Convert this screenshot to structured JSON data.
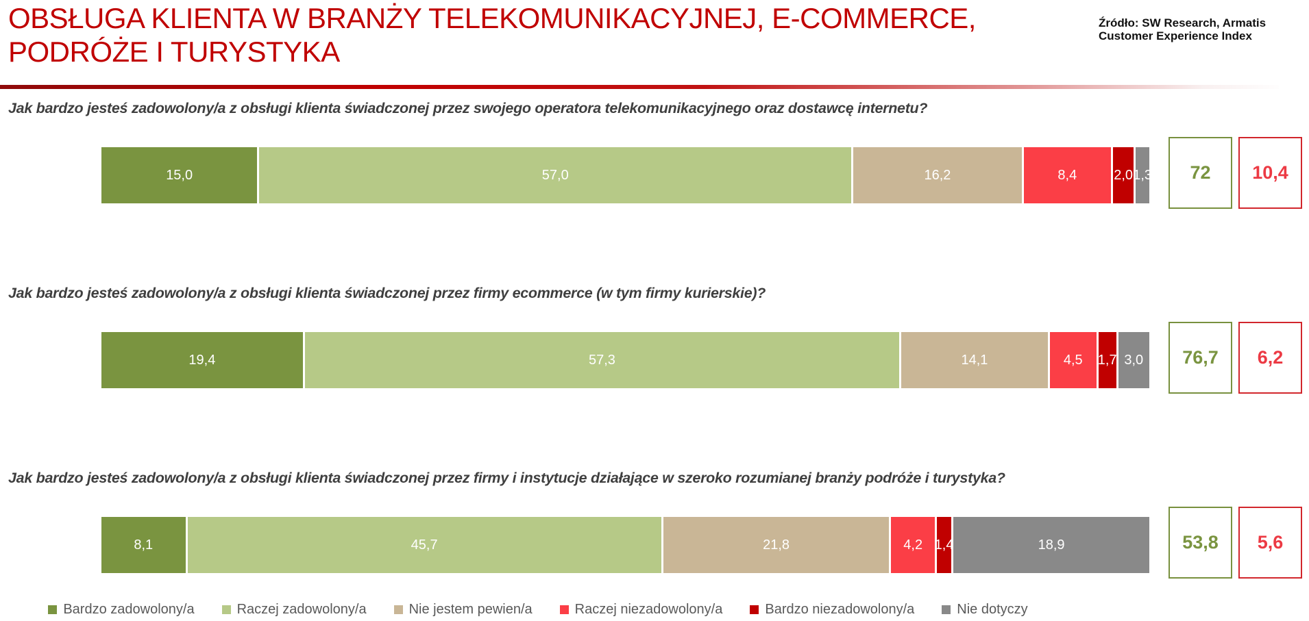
{
  "title_line1": "OBSŁUGA KLIENTA W BRANŻY TELEKOMUNIKACYJNEJ, E-COMMERCE,",
  "title_line2": "PODRÓŻE I TURYSTYKA",
  "source": {
    "line1": "Źródło: SW Research, Armatis",
    "line2": "Customer Experience Index"
  },
  "colors": {
    "title_red": "#C00000",
    "question_text": "#3F3F3F",
    "legend_text": "#595959",
    "positive_box_border": "#78903E",
    "positive_box_text": "#7A9440",
    "negative_box_border": "#D2262C",
    "negative_box_text": "#EC3A44"
  },
  "chart_data": {
    "type": "bar",
    "stacked": true,
    "orientation": "horizontal",
    "xlim": [
      0,
      100
    ],
    "grid": false,
    "legend_position": "bottom",
    "value_label_format": "comma-decimal",
    "categories": [
      "Jak bardzo jesteś zadowolony/a z obsługi klienta świadczonej przez swojego operatora telekomunikacyjnego oraz dostawcę internetu?",
      "Jak bardzo jesteś zadowolony/a z obsługi klienta świadczonej przez firmy ecommerce (w tym firmy kurierskie)?",
      "Jak bardzo jesteś zadowolony/a z obsługi klienta świadczonej przez firmy i instytucje działające w szeroko rozumianej branży podróże i turystyka?"
    ],
    "series": [
      {
        "key": "bardzo-zadowolony",
        "name": "Bardzo zadowolony/a",
        "color": "#7A9440",
        "values": [
          15.0,
          19.4,
          8.1
        ]
      },
      {
        "key": "raczej-zadowolony",
        "name": "Raczej zadowolony/a",
        "color": "#B6C987",
        "values": [
          57.0,
          57.3,
          45.7
        ]
      },
      {
        "key": "nie-jestem-pewien",
        "name": "Nie jestem pewien/a",
        "color": "#C9B696",
        "values": [
          16.2,
          14.1,
          21.8
        ]
      },
      {
        "key": "raczej-niezadowolony",
        "name": "Raczej niezadowolony/a",
        "color": "#FB3E46",
        "values": [
          8.4,
          4.5,
          4.2
        ]
      },
      {
        "key": "bardzo-niezadowolony",
        "name": "Bardzo niezadowolony/a",
        "color": "#C00000",
        "values": [
          2.0,
          1.7,
          1.4
        ]
      },
      {
        "key": "nie-dotyczy",
        "name": "Nie dotyczy",
        "color": "#898989",
        "values": [
          1.3,
          3.0,
          18.9
        ]
      }
    ],
    "summary": [
      {
        "positive": "72",
        "negative": "10,4"
      },
      {
        "positive": "76,7",
        "negative": "6,2"
      },
      {
        "positive": "53,8",
        "negative": "5,6"
      }
    ]
  }
}
